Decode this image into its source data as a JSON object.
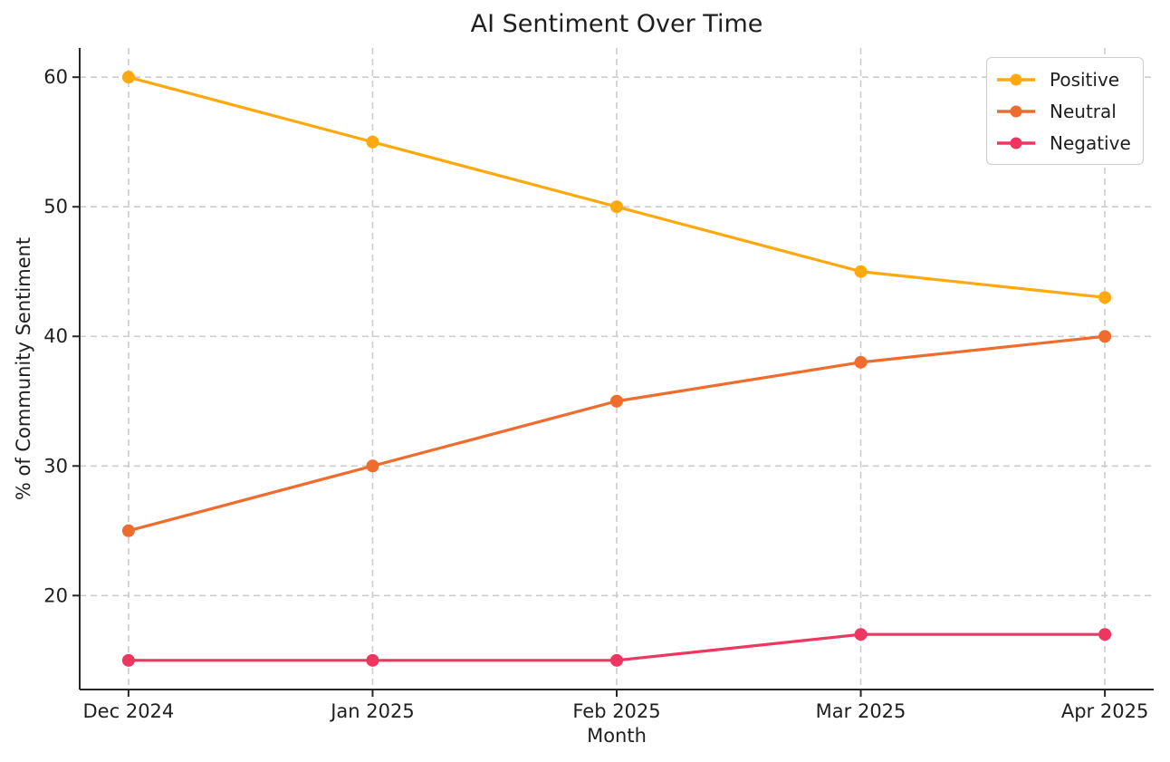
{
  "chart_data": {
    "type": "line",
    "title": "AI Sentiment Over Time",
    "xlabel": "Month",
    "ylabel": "% of Community Sentiment",
    "categories": [
      "Dec 2024",
      "Jan 2025",
      "Feb 2025",
      "Mar 2025",
      "Apr 2025"
    ],
    "yticks": [
      20,
      30,
      40,
      50,
      60
    ],
    "xlim": [
      -0.2,
      4.2
    ],
    "ylim": [
      12.75,
      62.25
    ],
    "grid": true,
    "grid_style": "dashed",
    "legend_position": "upper right",
    "series": [
      {
        "name": "Positive",
        "color": "#FFA90E",
        "values": [
          60,
          55,
          50,
          45,
          43
        ]
      },
      {
        "name": "Neutral",
        "color": "#EE6C2D",
        "values": [
          25,
          30,
          35,
          38,
          40
        ]
      },
      {
        "name": "Negative",
        "color": "#EF3660",
        "values": [
          15,
          15,
          15,
          17,
          17
        ]
      }
    ]
  },
  "colors": {
    "background": "#ffffff",
    "spine": "#262626",
    "grid": "#cccccc",
    "text": "#1f1f1f",
    "legend_border": "#cccccc"
  }
}
